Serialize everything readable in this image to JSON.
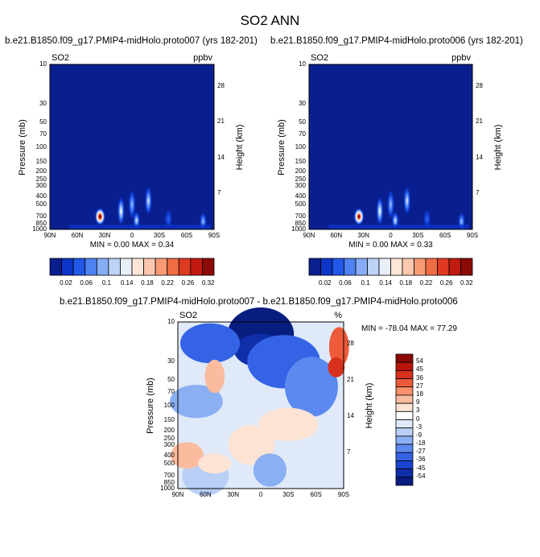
{
  "figure": {
    "title": "SO2 ANN",
    "left_title": "b.e21.B1850.f09_g17.PMIP4-midHolo.proto007 (yrs 182-201)",
    "right_title": "b.e21.B1850.f09_g17.PMIP4-midHolo.proto006 (yrs 182-201)",
    "diff_title": "b.e21.B1850.f09_g17.PMIP4-midHolo.proto007 - b.e21.B1850.f09_g17.PMIP4-midHolo.proto006"
  },
  "chart_data": [
    {
      "type": "heatmap",
      "panel": "proto007",
      "variable": "SO2",
      "units": "ppbv",
      "xlabel": "",
      "ylabel": "Pressure (mb)",
      "y2label": "Height (km)",
      "x_ticks": [
        "90N",
        "60N",
        "30N",
        "0",
        "30S",
        "60S",
        "90S"
      ],
      "y_ticks": [
        "10",
        "30",
        "50",
        "70",
        "100",
        "150",
        "200",
        "250",
        "300",
        "400",
        "500",
        "700",
        "850",
        "1000"
      ],
      "y2_ticks": [
        "28",
        "21",
        "14",
        "7"
      ],
      "min_text": "MIN =  0.00  MAX =  0.34",
      "min": 0.0,
      "max": 0.34,
      "colorbar_ticks": [
        "0.02",
        "0.06",
        "0.1",
        "0.14",
        "0.18",
        "0.22",
        "0.26",
        "0.32"
      ],
      "hotspots": [
        {
          "lat": 35,
          "p": 700,
          "value": 0.34
        },
        {
          "lat": 12,
          "p": 600,
          "value": 0.16
        },
        {
          "lat": 0,
          "p": 500,
          "value": 0.12
        },
        {
          "lat": -5,
          "p": 780,
          "value": 0.14
        },
        {
          "lat": -18,
          "p": 450,
          "value": 0.14
        },
        {
          "lat": -40,
          "p": 750,
          "value": 0.06
        },
        {
          "lat": -78,
          "p": 800,
          "value": 0.1
        }
      ]
    },
    {
      "type": "heatmap",
      "panel": "proto006",
      "variable": "SO2",
      "units": "ppbv",
      "xlabel": "",
      "ylabel": "Pressure (mb)",
      "y2label": "Height (km)",
      "x_ticks": [
        "90N",
        "60N",
        "30N",
        "0",
        "30S",
        "60S",
        "90S"
      ],
      "y_ticks": [
        "10",
        "30",
        "50",
        "70",
        "100",
        "150",
        "200",
        "250",
        "300",
        "400",
        "500",
        "700",
        "850",
        "1000"
      ],
      "y2_ticks": [
        "28",
        "21",
        "14",
        "7"
      ],
      "min_text": "MIN =  0.00  MAX =  0.33",
      "min": 0.0,
      "max": 0.33,
      "colorbar_ticks": [
        "0.02",
        "0.06",
        "0.1",
        "0.14",
        "0.18",
        "0.22",
        "0.26",
        "0.32"
      ],
      "hotspots": [
        {
          "lat": 35,
          "p": 700,
          "value": 0.33
        },
        {
          "lat": 12,
          "p": 600,
          "value": 0.15
        },
        {
          "lat": 0,
          "p": 500,
          "value": 0.12
        },
        {
          "lat": -5,
          "p": 780,
          "value": 0.14
        },
        {
          "lat": -18,
          "p": 450,
          "value": 0.14
        },
        {
          "lat": -40,
          "p": 750,
          "value": 0.06
        },
        {
          "lat": -78,
          "p": 800,
          "value": 0.1
        }
      ]
    },
    {
      "type": "heatmap",
      "panel": "difference",
      "variable": "SO2",
      "units": "%",
      "xlabel": "",
      "ylabel": "Pressure (mb)",
      "y2label": "Height (km)",
      "x_ticks": [
        "90N",
        "60N",
        "30N",
        "0",
        "30S",
        "60S",
        "90S"
      ],
      "y_ticks": [
        "10",
        "30",
        "50",
        "70",
        "100",
        "150",
        "200",
        "250",
        "300",
        "400",
        "500",
        "700",
        "850",
        "1000"
      ],
      "y2_ticks": [
        "28",
        "21",
        "14",
        "7"
      ],
      "min_text": "MIN = -78.04  MAX =  77.29",
      "min": -78.04,
      "max": 77.29,
      "colorbar_ticks": [
        "54",
        "45",
        "36",
        "27",
        "18",
        "9",
        "3",
        "0",
        "-3",
        "-9",
        "-18",
        "-27",
        "-36",
        "-45",
        "-54"
      ]
    }
  ],
  "colors": {
    "seq": [
      "#0a1f8f",
      "#0d35c7",
      "#2258e8",
      "#4f82f2",
      "#86acf5",
      "#bcd2f7",
      "#e8eff8",
      "#fde6d8",
      "#fbc7ae",
      "#f89b74",
      "#f06c45",
      "#de3a20",
      "#c11a10",
      "#8b0a05"
    ],
    "div": [
      "#8b0a05",
      "#b81509",
      "#d7301c",
      "#ee5b3a",
      "#f7906b",
      "#fbbb9e",
      "#fde3d4",
      "#ffffff",
      "#dfe9f8",
      "#b9cff6",
      "#8aaff3",
      "#5c89f0",
      "#3463e6",
      "#1a44cf",
      "#0e2fa8",
      "#081d80"
    ]
  }
}
